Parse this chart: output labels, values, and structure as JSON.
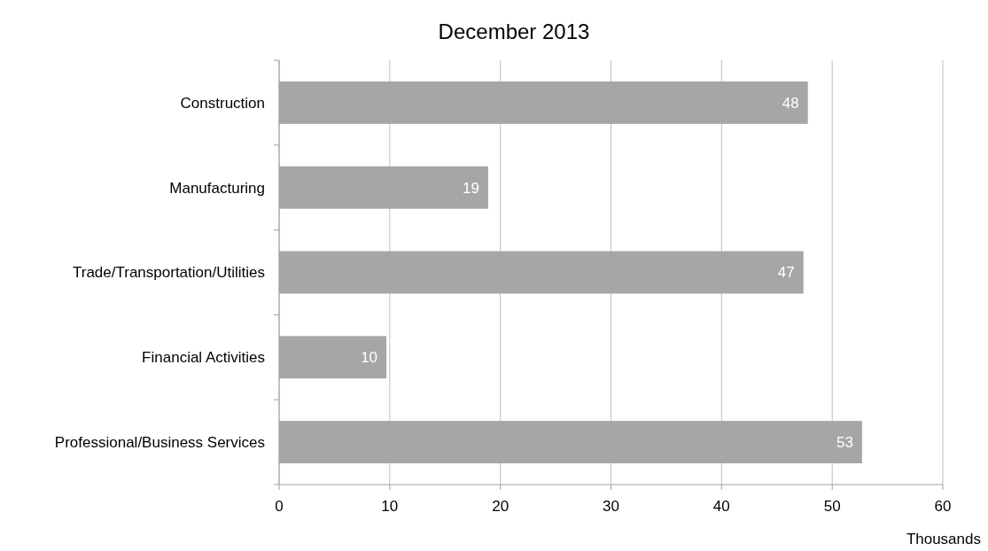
{
  "chart_data": {
    "type": "bar",
    "orientation": "horizontal",
    "title": "December 2013",
    "xlabel": "Thousands",
    "categories": [
      "Construction",
      "Manufacturing",
      "Trade/Transportation/Utilities",
      "Financial Activities",
      "Professional/Business Services"
    ],
    "values": [
      47.8,
      18.9,
      47.4,
      9.7,
      52.7
    ],
    "value_labels": [
      "48",
      "19",
      "47",
      "10",
      "53"
    ],
    "color": "#a6a6a6",
    "xlim": [
      0,
      60
    ],
    "xticks": [
      0,
      10,
      20,
      30,
      40,
      50,
      60
    ],
    "grid": "x"
  }
}
